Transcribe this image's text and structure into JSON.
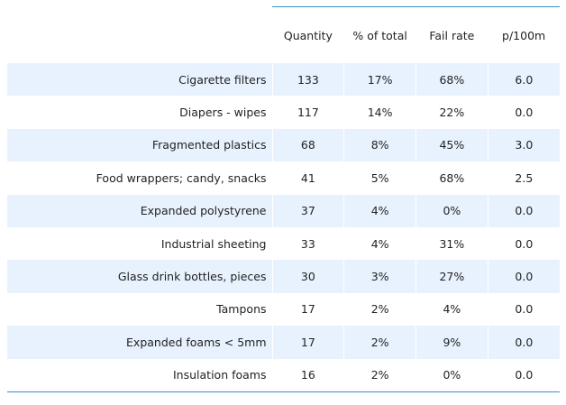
{
  "table": {
    "headers": [
      "Quantity",
      "% of total",
      "Fail rate",
      "p/100m"
    ],
    "rows": [
      {
        "label": "Cigarette filters",
        "quantity": "133",
        "pct_total": "17%",
        "fail_rate": "68%",
        "p100m": "6.0"
      },
      {
        "label": "Diapers - wipes",
        "quantity": "117",
        "pct_total": "14%",
        "fail_rate": "22%",
        "p100m": "0.0"
      },
      {
        "label": "Fragmented plastics",
        "quantity": "68",
        "pct_total": "8%",
        "fail_rate": "45%",
        "p100m": "3.0"
      },
      {
        "label": "Food wrappers; candy, snacks",
        "quantity": "41",
        "pct_total": "5%",
        "fail_rate": "68%",
        "p100m": "2.5"
      },
      {
        "label": "Expanded polystyrene",
        "quantity": "37",
        "pct_total": "4%",
        "fail_rate": "0%",
        "p100m": "0.0"
      },
      {
        "label": "Industrial sheeting",
        "quantity": "33",
        "pct_total": "4%",
        "fail_rate": "31%",
        "p100m": "0.0"
      },
      {
        "label": "Glass drink bottles, pieces",
        "quantity": "30",
        "pct_total": "3%",
        "fail_rate": "27%",
        "p100m": "0.0"
      },
      {
        "label": "Tampons",
        "quantity": "17",
        "pct_total": "2%",
        "fail_rate": "4%",
        "p100m": "0.0"
      },
      {
        "label": "Expanded foams < 5mm",
        "quantity": "17",
        "pct_total": "2%",
        "fail_rate": "9%",
        "p100m": "0.0"
      },
      {
        "label": "Insulation foams",
        "quantity": "16",
        "pct_total": "2%",
        "fail_rate": "0%",
        "p100m": "0.0"
      }
    ]
  },
  "colors": {
    "row_shade": "#e8f2fe",
    "rule": "#3b8fc4",
    "text": "#222222"
  }
}
